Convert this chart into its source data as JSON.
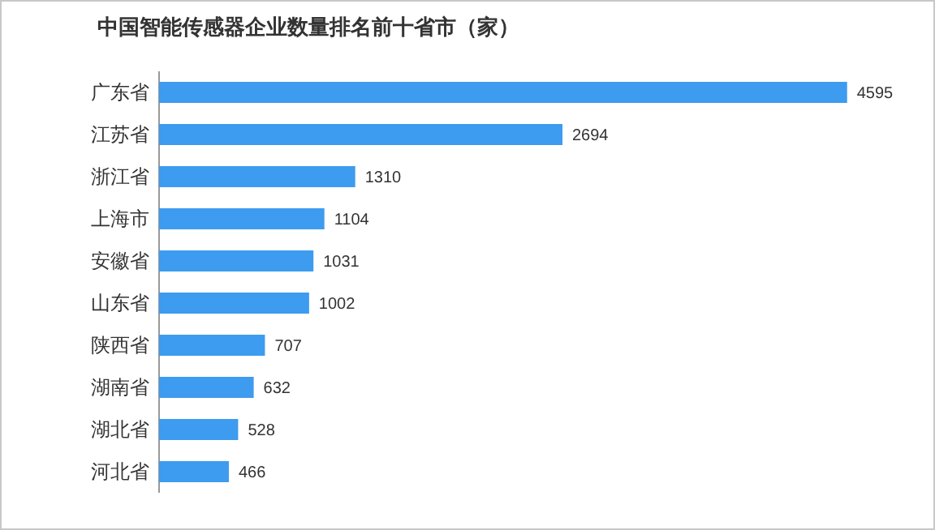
{
  "chart_data": {
    "type": "bar",
    "orientation": "horizontal",
    "title": "中国智能传感器企业数量排名前十省市（家）",
    "categories": [
      "广东省",
      "江苏省",
      "浙江省",
      "上海市",
      "安徽省",
      "山东省",
      "陕西省",
      "湖南省",
      "湖北省",
      "河北省"
    ],
    "values": [
      4595,
      2694,
      1310,
      1104,
      1031,
      1002,
      707,
      632,
      528,
      466
    ],
    "color": "#3d9bf0",
    "data_labels": true
  }
}
